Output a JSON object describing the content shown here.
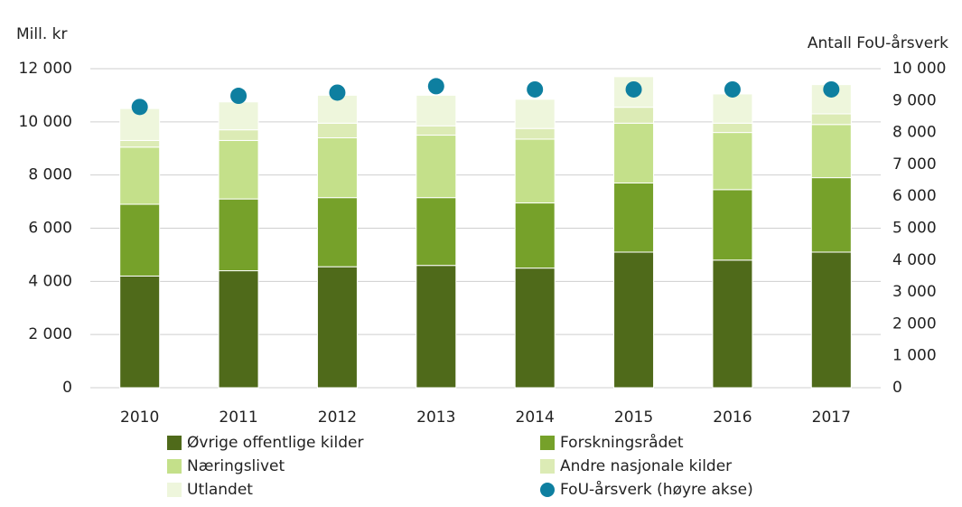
{
  "chart_data": {
    "type": "bar",
    "stacked": true,
    "ylabel": "Mill. kr",
    "y2label": "Antall FoU-årsverk",
    "categories": [
      "2010",
      "2011",
      "2012",
      "2013",
      "2014",
      "2015",
      "2016",
      "2017"
    ],
    "series": [
      {
        "name": "Øvrige offentlige kilder",
        "color": "#4f6a1a",
        "values": [
          4200,
          4400,
          4550,
          4600,
          4500,
          5100,
          4800,
          5100
        ]
      },
      {
        "name": "Forskningsrådet",
        "color": "#76a12a",
        "values": [
          2700,
          2700,
          2600,
          2550,
          2450,
          2600,
          2650,
          2800
        ]
      },
      {
        "name": "Næringslivet",
        "color": "#c4e08a",
        "values": [
          2150,
          2200,
          2250,
          2350,
          2400,
          2250,
          2150,
          2000
        ]
      },
      {
        "name": "Andre nasjonale kilder",
        "color": "#dcebb5",
        "values": [
          250,
          400,
          550,
          350,
          400,
          600,
          350,
          400
        ]
      },
      {
        "name": "Utlandet",
        "color": "#eef6dc",
        "values": [
          1200,
          1050,
          1050,
          1150,
          1100,
          1150,
          1100,
          1100
        ]
      },
      {
        "name": "FoU-årsverk (høyre akse)",
        "color": "#0e7fa0",
        "axis": "y2",
        "marker": "circle",
        "values": [
          8800,
          9150,
          9250,
          9450,
          9350,
          9350,
          9350,
          9350
        ]
      }
    ],
    "ylim": [
      0,
      12000
    ],
    "yticks": [
      0,
      {
        "value": 2000,
        "label": "2 000"
      },
      {
        "value": 4000,
        "label": "4 000"
      },
      {
        "value": 6000,
        "label": "6 000"
      },
      {
        "value": 8000,
        "label": "8 000"
      },
      {
        "value": 10000,
        "label": "10 000"
      },
      {
        "value": 12000,
        "label": "12 000"
      }
    ],
    "y2lim": [
      0,
      10000
    ],
    "y2ticks": [
      0,
      {
        "value": 1000,
        "label": "1 000"
      },
      {
        "value": 2000,
        "label": "2 000"
      },
      {
        "value": 3000,
        "label": "3 000"
      },
      {
        "value": 4000,
        "label": "4 000"
      },
      {
        "value": 5000,
        "label": "5 000"
      },
      {
        "value": 6000,
        "label": "6 000"
      },
      {
        "value": 7000,
        "label": "7 000"
      },
      {
        "value": 8000,
        "label": "8 000"
      },
      {
        "value": 9000,
        "label": "9 000"
      },
      {
        "value": 10000,
        "label": "10 000"
      }
    ],
    "grid": true,
    "legend": "bottom"
  }
}
